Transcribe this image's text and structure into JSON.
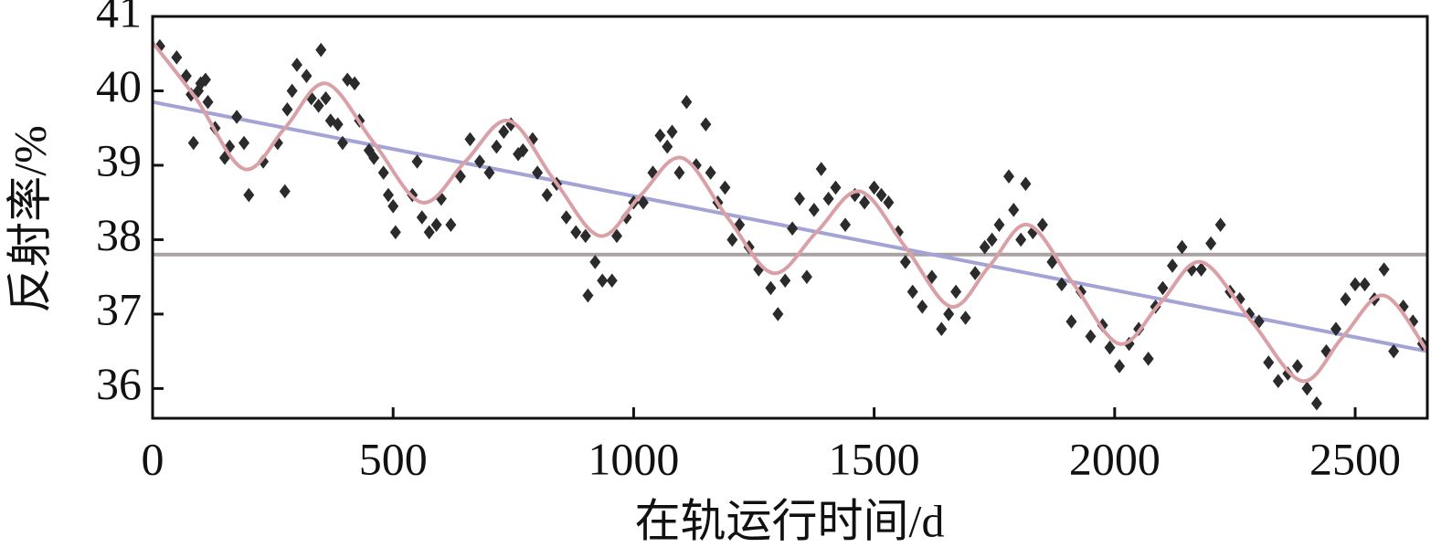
{
  "chart_data": {
    "type": "scatter",
    "xlabel": "在轨运行时间/d",
    "ylabel": "反射率/%",
    "xlim": [
      0,
      2650
    ],
    "ylim": [
      35.6,
      41
    ],
    "xticks": [
      0,
      500,
      1000,
      1500,
      2000,
      2500
    ],
    "yticks": [
      36,
      37,
      38,
      39,
      40,
      41
    ],
    "series": [
      {
        "style": "markers",
        "color": "#2b2b2b",
        "x": [
          15,
          50,
          70,
          80,
          95,
          100,
          110,
          115,
          85,
          130,
          150,
          160,
          175,
          190,
          200,
          230,
          260,
          275,
          280,
          290,
          300,
          320,
          330,
          345,
          350,
          360,
          370,
          385,
          395,
          405,
          420,
          430,
          450,
          460,
          480,
          490,
          500,
          505,
          540,
          550,
          560,
          575,
          590,
          600,
          620,
          640,
          660,
          680,
          700,
          715,
          730,
          745,
          760,
          770,
          790,
          800,
          820,
          840,
          860,
          880,
          900,
          905,
          920,
          935,
          955,
          965,
          985,
          1000,
          1020,
          1040,
          1055,
          1070,
          1080,
          1095,
          1110,
          1130,
          1150,
          1160,
          1175,
          1190,
          1205,
          1220,
          1240,
          1260,
          1285,
          1300,
          1315,
          1330,
          1345,
          1360,
          1375,
          1390,
          1405,
          1420,
          1440,
          1460,
          1480,
          1500,
          1515,
          1530,
          1550,
          1565,
          1580,
          1600,
          1620,
          1640,
          1655,
          1670,
          1690,
          1710,
          1730,
          1745,
          1760,
          1780,
          1790,
          1805,
          1815,
          1830,
          1850,
          1870,
          1890,
          1910,
          1930,
          1950,
          1975,
          1990,
          2010,
          2030,
          2050,
          2070,
          2085,
          2100,
          2120,
          2140,
          2160,
          2180,
          2200,
          2220,
          2240,
          2260,
          2280,
          2300,
          2320,
          2340,
          2360,
          2380,
          2400,
          2420,
          2440,
          2460,
          2480,
          2500,
          2520,
          2540,
          2560,
          2580,
          2600,
          2620,
          2640
        ],
        "values": [
          40.6,
          40.45,
          40.2,
          39.95,
          40.0,
          40.1,
          40.15,
          39.85,
          39.3,
          39.5,
          39.1,
          39.25,
          39.65,
          39.3,
          38.6,
          39.05,
          39.3,
          38.65,
          39.75,
          40.0,
          40.35,
          40.2,
          39.9,
          39.8,
          40.55,
          39.9,
          39.6,
          39.55,
          39.3,
          40.15,
          40.1,
          39.6,
          39.2,
          39.1,
          38.9,
          38.6,
          38.45,
          38.1,
          38.6,
          39.05,
          38.3,
          38.1,
          38.2,
          38.55,
          38.2,
          38.85,
          39.35,
          39.05,
          38.9,
          39.25,
          39.45,
          39.55,
          39.15,
          39.2,
          39.35,
          38.9,
          38.6,
          38.75,
          38.3,
          38.1,
          38.05,
          37.25,
          37.7,
          37.45,
          37.45,
          38.05,
          38.3,
          38.5,
          38.5,
          38.9,
          39.4,
          39.25,
          39.45,
          38.9,
          39.85,
          39.0,
          39.55,
          38.9,
          38.5,
          38.7,
          38.0,
          38.2,
          37.9,
          37.6,
          37.35,
          37.0,
          37.45,
          38.15,
          38.55,
          37.5,
          38.4,
          38.95,
          38.55,
          38.7,
          38.2,
          38.6,
          38.5,
          38.7,
          38.6,
          38.5,
          38.1,
          37.7,
          37.3,
          37.1,
          37.5,
          36.8,
          37.0,
          37.3,
          36.95,
          37.55,
          37.9,
          38.0,
          38.2,
          38.85,
          38.4,
          38.0,
          38.75,
          38.1,
          38.2,
          37.7,
          37.4,
          36.9,
          37.3,
          36.7,
          36.85,
          36.55,
          36.3,
          36.6,
          36.8,
          36.4,
          37.1,
          37.35,
          37.65,
          37.9,
          37.6,
          37.6,
          37.95,
          38.2,
          37.3,
          37.2,
          37.0,
          36.9,
          36.35,
          36.1,
          36.2,
          36.3,
          36.0,
          35.8,
          36.5,
          36.8,
          37.2,
          37.4,
          37.4,
          37.2,
          37.6,
          36.5,
          37.1,
          36.9,
          36.6
        ]
      },
      {
        "style": "curve",
        "color": "#d9a0a6",
        "x": [
          0,
          90,
          190,
          275,
          360,
          460,
          560,
          650,
          740,
          835,
          930,
          1015,
          1100,
          1195,
          1290,
          1380,
          1470,
          1565,
          1660,
          1740,
          1820,
          1915,
          2010,
          2095,
          2180,
          2285,
          2390,
          2475,
          2560,
          2650
        ],
        "values": [
          40.65,
          39.9,
          38.95,
          39.5,
          40.1,
          39.3,
          38.5,
          39.05,
          39.6,
          38.8,
          38.05,
          38.6,
          39.1,
          38.3,
          37.55,
          38.1,
          38.65,
          37.9,
          37.1,
          37.65,
          38.2,
          37.4,
          36.6,
          37.15,
          37.7,
          36.9,
          36.1,
          36.7,
          37.25,
          36.5
        ]
      },
      {
        "style": "line",
        "color": "#a3a3d6",
        "x": [
          0,
          2650
        ],
        "values": [
          39.85,
          36.5
        ]
      },
      {
        "style": "line",
        "color": "#aaa2a2",
        "x": [
          0,
          2650
        ],
        "values": [
          37.8,
          37.8
        ]
      }
    ]
  }
}
